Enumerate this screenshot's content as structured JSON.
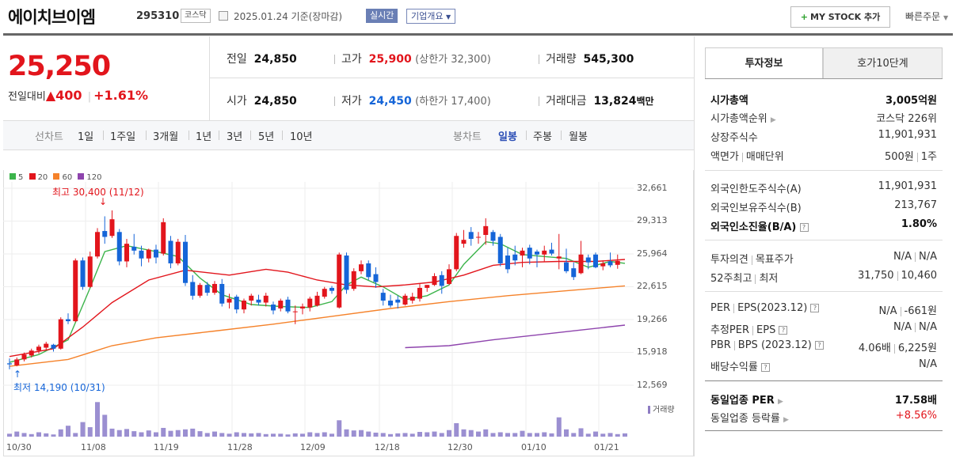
{
  "header": {
    "name": "에이치브이엠",
    "code": "295310",
    "market": "코스닥",
    "date": "2025.01.24",
    "basis": "기준(장마감)",
    "realtime": "실시간",
    "corp_info": "기업개요",
    "mystock": "MY STOCK 추가",
    "quick_order": "빠른주문"
  },
  "price": {
    "current": "25,250",
    "change_label": "전일대비",
    "change": "400",
    "change_pct": "+1.61%"
  },
  "quote": {
    "prev_label": "전일",
    "prev": "24,850",
    "high_label": "고가",
    "high": "25,900",
    "upper_label": "(상한가 32,300)",
    "volume_label": "거래량",
    "volume": "545,300",
    "open_label": "시가",
    "open": "24,850",
    "low_label": "저가",
    "low": "24,450",
    "lower_label": "(하한가 17,400)",
    "amount_label": "거래대금",
    "amount": "13,824",
    "amount_unit": "백만"
  },
  "toolbar": {
    "line_label": "선차트",
    "periods": [
      "1일",
      "1주일",
      "3개월",
      "1년",
      "3년",
      "5년",
      "10년"
    ],
    "candle_label": "봉차트",
    "candles": [
      "일봉",
      "주봉",
      "월봉"
    ]
  },
  "chart_data": {
    "type": "candlestick",
    "legend": [
      "5",
      "20",
      "60",
      "120"
    ],
    "legend_colors": [
      "#3cb44b",
      "#e2151c",
      "#f5822a",
      "#8e44ad"
    ],
    "yticks": [
      "32,661",
      "29,313",
      "25,964",
      "22,615",
      "19,266",
      "15,918",
      "12,569"
    ],
    "ylim": [
      12569,
      32661
    ],
    "xticks": [
      "10/30",
      "11/08",
      "11/19",
      "11/28",
      "12/09",
      "12/18",
      "12/30",
      "01/10",
      "01/21"
    ],
    "high_annotation": "최고 30,400 (11/12)",
    "low_annotation": "최저 14,190 (10/31)",
    "volume_label": "거래량",
    "candles": [
      [
        14800,
        15300,
        14190,
        14700
      ],
      [
        14600,
        15400,
        14500,
        15200
      ],
      [
        15200,
        15900,
        15000,
        15700
      ],
      [
        15600,
        16300,
        15400,
        16100
      ],
      [
        16100,
        16700,
        15800,
        16500
      ],
      [
        16400,
        17000,
        16200,
        16800
      ],
      [
        16700,
        16800,
        16000,
        16300
      ],
      [
        16300,
        19500,
        16200,
        19300
      ],
      [
        19300,
        19900,
        18800,
        19100
      ],
      [
        19100,
        25500,
        19000,
        25300
      ],
      [
        25300,
        25600,
        22300,
        22600
      ],
      [
        22600,
        26200,
        22500,
        25700
      ],
      [
        25700,
        28600,
        25500,
        28200
      ],
      [
        28300,
        29800,
        27000,
        27700
      ],
      [
        27800,
        30400,
        27600,
        29500
      ],
      [
        28200,
        28500,
        24800,
        25200
      ],
      [
        25200,
        27500,
        24600,
        27000
      ],
      [
        26700,
        28000,
        25900,
        26300
      ],
      [
        26300,
        26800,
        24700,
        25500
      ],
      [
        25500,
        26500,
        25100,
        26400
      ],
      [
        26400,
        26900,
        25000,
        25600
      ],
      [
        26000,
        29600,
        25800,
        29200
      ],
      [
        27300,
        27800,
        24500,
        25000
      ],
      [
        25000,
        27500,
        24800,
        27200
      ],
      [
        27200,
        27900,
        22700,
        23000
      ],
      [
        23100,
        23800,
        21300,
        21700
      ],
      [
        21700,
        23000,
        21500,
        22800
      ],
      [
        22800,
        23100,
        21700,
        22000
      ],
      [
        22000,
        23200,
        21800,
        22900
      ],
      [
        22900,
        23400,
        20600,
        20900
      ],
      [
        21000,
        21900,
        20400,
        21400
      ],
      [
        21600,
        21800,
        19900,
        20300
      ],
      [
        20300,
        21400,
        19900,
        21200
      ],
      [
        21200,
        21900,
        20700,
        21700
      ],
      [
        21300,
        21800,
        20700,
        21000
      ],
      [
        21000,
        22000,
        20600,
        21700
      ],
      [
        20800,
        21100,
        19800,
        20200
      ],
      [
        20400,
        21400,
        20100,
        21200
      ],
      [
        21300,
        21600,
        19900,
        20100
      ],
      [
        20100,
        20700,
        18800,
        20100
      ],
      [
        20400,
        20900,
        19800,
        20600
      ],
      [
        20500,
        21600,
        20100,
        21400
      ],
      [
        20700,
        22100,
        20600,
        21700
      ],
      [
        21600,
        22600,
        21400,
        22400
      ],
      [
        22500,
        22700,
        21900,
        22200
      ],
      [
        20500,
        26100,
        20400,
        25900
      ],
      [
        25800,
        26100,
        21900,
        22300
      ],
      [
        22400,
        24500,
        22200,
        24200
      ],
      [
        24200,
        25300,
        23900,
        24900
      ],
      [
        25000,
        25300,
        23300,
        23600
      ],
      [
        23900,
        24600,
        22500,
        23100
      ],
      [
        22000,
        22400,
        20700,
        21200
      ],
      [
        21200,
        21800,
        20500,
        20700
      ],
      [
        21300,
        21700,
        20400,
        21000
      ],
      [
        20800,
        21900,
        20700,
        21700
      ],
      [
        21200,
        22000,
        20900,
        21600
      ],
      [
        21400,
        22900,
        21100,
        22500
      ],
      [
        22500,
        22800,
        22100,
        22800
      ],
      [
        22800,
        24000,
        22700,
        23700
      ],
      [
        23800,
        24200,
        21900,
        22700
      ],
      [
        22900,
        24900,
        22800,
        24400
      ],
      [
        24400,
        28100,
        24200,
        27800
      ],
      [
        27000,
        28400,
        26600,
        27400
      ],
      [
        28200,
        28700,
        26800,
        27500
      ],
      [
        27700,
        28200,
        27000,
        27700
      ],
      [
        27900,
        29600,
        26900,
        28800
      ],
      [
        28200,
        28400,
        26800,
        27300
      ],
      [
        27700,
        28000,
        24700,
        25000
      ],
      [
        25800,
        26600,
        24000,
        24400
      ],
      [
        25900,
        26800,
        24800,
        25300
      ],
      [
        25800,
        26600,
        24600,
        26300
      ],
      [
        26600,
        26900,
        24900,
        25500
      ],
      [
        26200,
        26400,
        24600,
        25900
      ],
      [
        25900,
        26800,
        25200,
        26300
      ],
      [
        26400,
        27100,
        25800,
        26000
      ],
      [
        25500,
        28000,
        24400,
        25700
      ],
      [
        25100,
        26500,
        24000,
        24200
      ],
      [
        24500,
        25100,
        23300,
        23600
      ],
      [
        24000,
        27300,
        23900,
        25900
      ],
      [
        25600,
        25900,
        24400,
        25100
      ],
      [
        25900,
        26100,
        24500,
        24600
      ],
      [
        24700,
        25300,
        24300,
        25000
      ],
      [
        25200,
        26100,
        24600,
        24800
      ],
      [
        24850,
        25900,
        24450,
        25250
      ]
    ],
    "ma5": [
      [
        0,
        14900
      ],
      [
        4,
        15700
      ],
      [
        8,
        17200
      ],
      [
        11,
        22500
      ],
      [
        13,
        26200
      ],
      [
        16,
        26800
      ],
      [
        20,
        26200
      ],
      [
        23,
        25700
      ],
      [
        26,
        23500
      ],
      [
        29,
        21800
      ],
      [
        33,
        20800
      ],
      [
        37,
        20600
      ],
      [
        41,
        20500
      ],
      [
        44,
        21100
      ],
      [
        46,
        22800
      ],
      [
        48,
        23600
      ],
      [
        51,
        22600
      ],
      [
        54,
        21300
      ],
      [
        57,
        21700
      ],
      [
        60,
        22800
      ],
      [
        62,
        24900
      ],
      [
        65,
        27200
      ],
      [
        67,
        27000
      ],
      [
        70,
        25900
      ],
      [
        73,
        25700
      ],
      [
        76,
        25500
      ],
      [
        79,
        24600
      ],
      [
        82,
        25200
      ],
      [
        84,
        25000
      ]
    ],
    "ma20": [
      [
        0,
        15500
      ],
      [
        6,
        16300
      ],
      [
        10,
        18500
      ],
      [
        14,
        21000
      ],
      [
        19,
        23300
      ],
      [
        24,
        24300
      ],
      [
        30,
        23800
      ],
      [
        35,
        24400
      ],
      [
        38,
        24100
      ],
      [
        42,
        23300
      ],
      [
        46,
        22800
      ],
      [
        50,
        22600
      ],
      [
        54,
        22800
      ],
      [
        58,
        23100
      ],
      [
        62,
        23800
      ],
      [
        66,
        24800
      ],
      [
        70,
        25100
      ],
      [
        75,
        25200
      ],
      [
        80,
        25200
      ],
      [
        84,
        25400
      ]
    ],
    "ma60": [
      [
        0,
        14500
      ],
      [
        8,
        15200
      ],
      [
        14,
        16600
      ],
      [
        20,
        17400
      ],
      [
        28,
        18100
      ],
      [
        36,
        18800
      ],
      [
        44,
        19600
      ],
      [
        52,
        20400
      ],
      [
        60,
        21100
      ],
      [
        68,
        21700
      ],
      [
        76,
        22200
      ],
      [
        84,
        22700
      ]
    ],
    "ma120": [
      [
        54,
        16400
      ],
      [
        60,
        16600
      ],
      [
        66,
        17200
      ],
      [
        72,
        17700
      ],
      [
        78,
        18200
      ],
      [
        84,
        18700
      ]
    ],
    "volume": [
      0.08,
      0.14,
      0.1,
      0.07,
      0.12,
      0.09,
      0.06,
      0.2,
      0.3,
      0.1,
      0.4,
      0.26,
      0.95,
      0.6,
      0.22,
      0.18,
      0.21,
      0.15,
      0.12,
      0.17,
      0.12,
      0.24,
      0.16,
      0.18,
      0.2,
      0.22,
      0.15,
      0.1,
      0.14,
      0.1,
      0.08,
      0.12,
      0.1,
      0.09,
      0.1,
      0.07,
      0.08,
      0.08,
      0.06,
      0.09,
      0.08,
      0.12,
      0.1,
      0.12,
      0.08,
      0.45,
      0.2,
      0.17,
      0.18,
      0.14,
      0.11,
      0.1,
      0.07,
      0.09,
      0.1,
      0.08,
      0.13,
      0.12,
      0.14,
      0.1,
      0.18,
      0.37,
      0.2,
      0.18,
      0.14,
      0.2,
      0.1,
      0.12,
      0.1,
      0.1,
      0.16,
      0.1,
      0.1,
      0.12,
      0.09,
      0.53,
      0.2,
      0.1,
      0.23,
      0.08,
      0.14,
      0.08,
      0.1,
      0.07,
      0.09
    ]
  },
  "tabs": {
    "invest": "투자정보",
    "hoga": "호가10단계"
  },
  "info": {
    "mcap_label": "시가총액",
    "mcap": "3,005억원",
    "mcap_rank_label": "시가총액순위",
    "mcap_rank": "코스닥 226위",
    "shares_label": "상장주식수",
    "shares": "11,901,931",
    "par_label": "액면가",
    "unit_label": "매매단위",
    "par": "500원",
    "unit": "1주",
    "foreign_limit_label": "외국인한도주식수(A)",
    "foreign_limit": "11,901,931",
    "foreign_hold_label": "외국인보유주식수(B)",
    "foreign_hold": "213,767",
    "foreign_ratio_label": "외국인소진율(B/A)",
    "foreign_ratio": "1.80%",
    "opinion_label": "투자의견",
    "target_label": "목표주가",
    "opinion": "N/A",
    "target": "N/A",
    "w52_label": "52주최고",
    "w52_low_label": "최저",
    "w52_high": "31,750",
    "w52_low": "10,460",
    "per_label": "PER",
    "eps_label": "EPS(2023.12)",
    "per": "N/A",
    "eps": "-661원",
    "est_per_label": "추정PER",
    "est_eps_label": "EPS",
    "est_per": "N/A",
    "est_eps": "N/A",
    "pbr_label": "PBR",
    "bps_label": "BPS (2023.12)",
    "pbr": "4.06배",
    "bps": "6,225원",
    "div_label": "배당수익률",
    "div": "N/A",
    "sector_per_label": "동일업종 PER",
    "sector_per": "17.58배",
    "sector_chg_label": "동일업종 등락률",
    "sector_chg": "+8.56%"
  }
}
